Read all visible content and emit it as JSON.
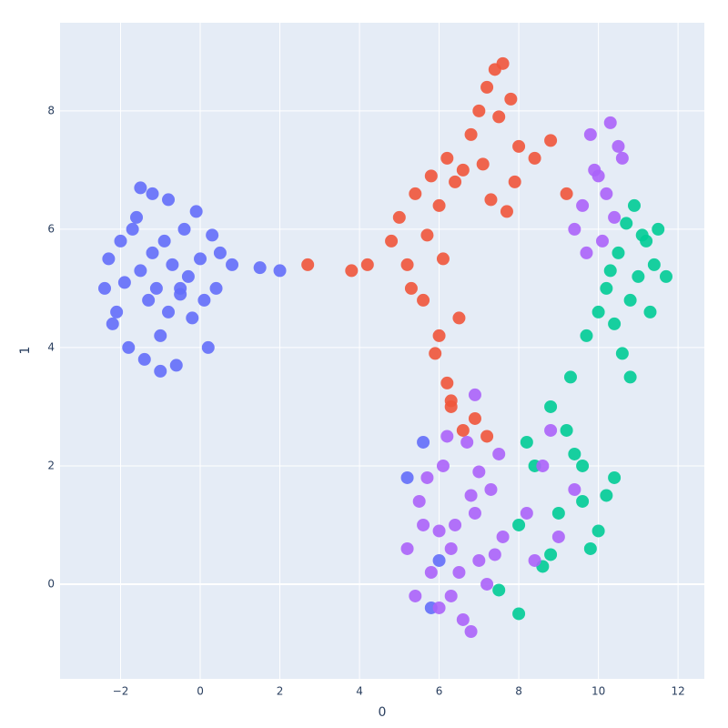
{
  "chart_data": {
    "type": "scatter",
    "x_label": "0",
    "y_label": "1",
    "grid": true,
    "background": "#e5ecf6",
    "xlim": [
      -3.52,
      12.66
    ],
    "ylim": [
      -1.6,
      9.49
    ],
    "xticks": [
      {
        "value": -2,
        "label": "−2"
      },
      0,
      2,
      4,
      6,
      8,
      10,
      12
    ],
    "yticks": [
      0,
      2,
      4,
      6,
      8
    ],
    "series": [
      {
        "color": "#636efa",
        "x": [
          -2.4,
          -2.2,
          -2.0,
          -1.8,
          -1.6,
          -1.4,
          -1.2,
          -1.0,
          -0.8,
          -0.6,
          -0.4,
          -0.2,
          0.0,
          0.2,
          0.4,
          -2.3,
          -1.9,
          -1.5,
          -1.1,
          -0.7,
          -0.3,
          0.1,
          0.5,
          -2.1,
          -1.7,
          -1.3,
          -0.9,
          -0.5,
          -0.1,
          0.3,
          -1.5,
          -1.0,
          -0.5,
          -1.2,
          -0.8,
          0.8,
          1.5,
          2.0,
          5.2,
          5.6,
          6.0,
          5.8
        ],
        "y": [
          5.0,
          4.4,
          5.8,
          4.0,
          6.2,
          3.8,
          6.6,
          4.2,
          6.5,
          3.7,
          6.0,
          4.5,
          5.5,
          4.0,
          5.0,
          5.5,
          5.1,
          5.3,
          5.0,
          5.4,
          5.2,
          4.8,
          5.6,
          4.6,
          6.0,
          4.8,
          5.8,
          4.9,
          6.3,
          5.9,
          6.7,
          3.6,
          5.0,
          5.6,
          4.6,
          5.4,
          5.35,
          5.3,
          1.8,
          2.4,
          0.4,
          -0.4
        ]
      },
      {
        "color": "#ef553b",
        "x": [
          4.8,
          5.0,
          5.2,
          5.4,
          5.6,
          5.8,
          6.0,
          6.2,
          5.3,
          5.7,
          6.1,
          6.5,
          5.9,
          6.3,
          6.0,
          6.4,
          6.2,
          6.6,
          6.8,
          7.0,
          7.2,
          7.4,
          7.6,
          7.8,
          8.0,
          7.1,
          7.5,
          7.9,
          7.3,
          7.7,
          6.9,
          8.4,
          8.8,
          9.2,
          2.7,
          3.8,
          4.2,
          6.6,
          7.2,
          6.3
        ],
        "y": [
          5.8,
          6.2,
          5.4,
          6.6,
          4.8,
          6.9,
          4.2,
          3.4,
          5.0,
          5.9,
          5.5,
          4.5,
          3.9,
          3.1,
          6.4,
          6.8,
          7.2,
          7.0,
          7.6,
          8.0,
          8.4,
          8.7,
          8.8,
          8.2,
          7.4,
          7.1,
          7.9,
          6.8,
          6.5,
          6.3,
          2.8,
          7.2,
          7.5,
          6.6,
          5.4,
          5.3,
          5.4,
          2.6,
          2.5,
          3.0
        ]
      },
      {
        "color": "#00cc96",
        "x": [
          10.2,
          10.5,
          10.8,
          11.1,
          11.4,
          11.7,
          10.4,
          10.7,
          11.0,
          11.3,
          10.6,
          10.9,
          11.2,
          10.3,
          10.8,
          11.5,
          10.0,
          9.7,
          8.0,
          8.4,
          8.8,
          9.2,
          9.6,
          10.0,
          10.4,
          8.2,
          8.6,
          9.0,
          9.4,
          9.8,
          10.2,
          8.8,
          9.3,
          7.5,
          8.0,
          9.6
        ],
        "y": [
          5.0,
          5.6,
          4.8,
          5.9,
          5.4,
          5.2,
          4.4,
          6.1,
          5.2,
          4.6,
          3.9,
          6.4,
          5.8,
          5.3,
          3.5,
          6.0,
          4.6,
          4.2,
          1.0,
          2.0,
          0.5,
          2.6,
          1.4,
          0.9,
          1.8,
          2.4,
          0.3,
          1.2,
          2.2,
          0.6,
          1.5,
          3.0,
          3.5,
          -0.1,
          -0.5,
          2.0
        ]
      },
      {
        "color": "#ab63fa",
        "x": [
          5.2,
          5.5,
          5.8,
          6.1,
          6.4,
          6.7,
          7.0,
          7.3,
          7.6,
          5.4,
          5.7,
          6.0,
          6.3,
          6.6,
          6.9,
          7.2,
          7.5,
          5.6,
          6.2,
          6.8,
          7.4,
          6.5,
          7.0,
          6.0,
          6.8,
          8.2,
          8.6,
          9.0,
          8.4,
          8.8,
          9.4,
          9.8,
          10.0,
          10.3,
          10.6,
          9.6,
          9.9,
          10.2,
          10.5,
          9.4,
          9.7,
          10.1,
          10.4,
          6.9,
          6.3
        ],
        "y": [
          0.6,
          1.4,
          0.2,
          2.0,
          1.0,
          2.4,
          0.4,
          1.6,
          0.8,
          -0.2,
          1.8,
          -0.4,
          0.6,
          -0.6,
          1.2,
          0.0,
          2.2,
          1.0,
          2.5,
          -0.8,
          0.5,
          0.2,
          1.9,
          0.9,
          1.5,
          1.2,
          2.0,
          0.8,
          0.4,
          2.6,
          1.6,
          7.6,
          6.9,
          7.8,
          7.2,
          6.4,
          7.0,
          6.6,
          7.4,
          6.0,
          5.6,
          5.8,
          6.2,
          3.2,
          -0.2
        ]
      }
    ]
  }
}
